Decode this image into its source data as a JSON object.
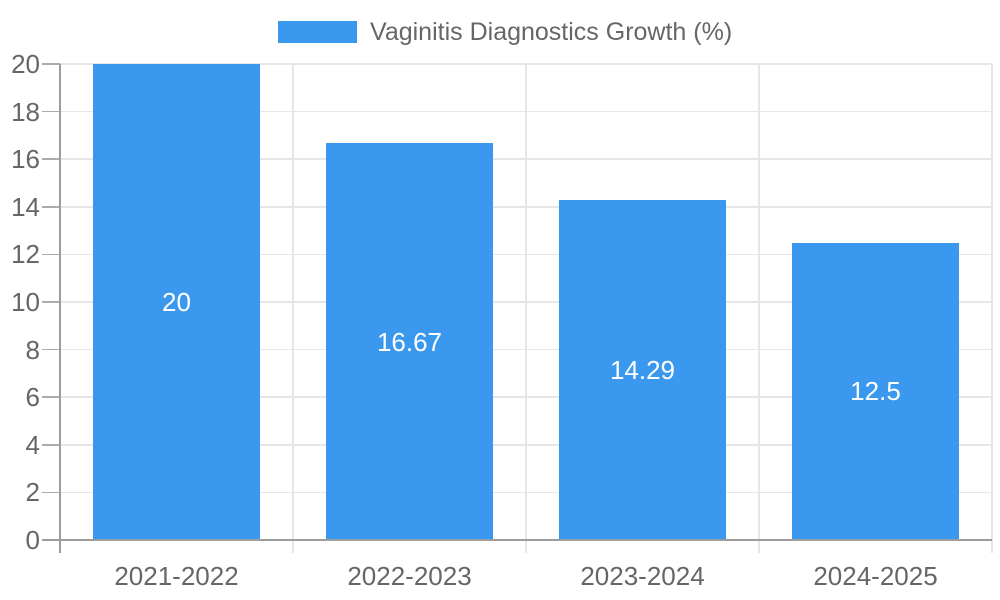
{
  "chart_data": {
    "type": "bar",
    "title": "Vaginitis Diagnostics Growth (%)",
    "legend": {
      "label": "Vaginitis Diagnostics Growth (%)",
      "position": "top-center"
    },
    "categories": [
      "2021-2022",
      "2022-2023",
      "2023-2024",
      "2024-2025"
    ],
    "values": [
      20,
      16.67,
      14.29,
      12.5
    ],
    "bar_labels": [
      "20",
      "16.67",
      "14.29",
      "12.5"
    ],
    "xlabel": "",
    "ylabel": "",
    "ylim": [
      0,
      20
    ],
    "ytick_step": 2,
    "ytick_labels": [
      "0",
      "2",
      "4",
      "6",
      "8",
      "10",
      "12",
      "14",
      "16",
      "18",
      "20"
    ],
    "grid": true,
    "colors": {
      "bar": "#3A99EE",
      "grid": "#E6E6E6",
      "axis": "#9C9C9C",
      "tick_mark": "#ABABAB",
      "tick_text": "#666666",
      "value_label_text": "#FFFFFF",
      "background": "#FFFFFF"
    }
  }
}
